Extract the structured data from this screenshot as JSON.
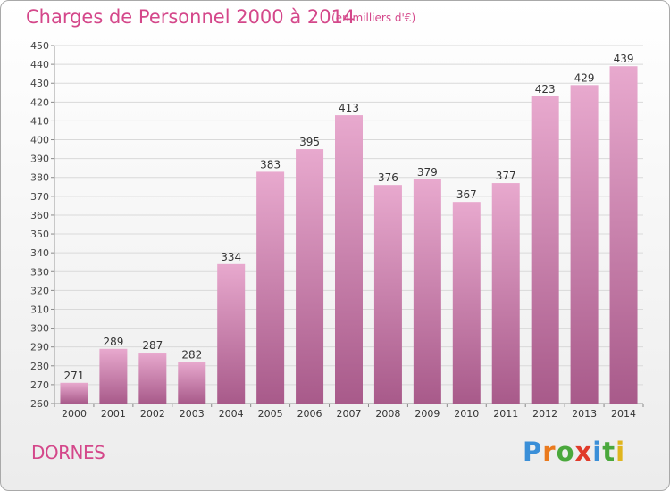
{
  "header": {
    "title": "Charges de Personnel 2000 à 2014",
    "subtitle": "(en milliers d'€)"
  },
  "footer": {
    "place": "DORNES",
    "logo_letters": [
      "P",
      "r",
      "o",
      "x",
      "i",
      "t",
      "i"
    ],
    "logo_colors": [
      "#3a8fd8",
      "#ea7a1e",
      "#4aa83c",
      "#e03a2a",
      "#3a8fd8",
      "#4aa83c",
      "#e0b51e"
    ],
    "logo_icon": "proxiti-logo"
  },
  "colors": {
    "accent": "#d4478a",
    "bar_top": "#e8a9ce",
    "bar_bottom": "#a85a8a",
    "grid": "#d9d9d9"
  },
  "chart_data": {
    "type": "bar",
    "categories": [
      "2000",
      "2001",
      "2002",
      "2003",
      "2004",
      "2005",
      "2006",
      "2007",
      "2008",
      "2009",
      "2010",
      "2011",
      "2012",
      "2013",
      "2014"
    ],
    "values": [
      271,
      289,
      287,
      282,
      334,
      383,
      395,
      413,
      376,
      379,
      367,
      377,
      423,
      429,
      439
    ],
    "ylim": [
      260,
      450
    ],
    "yticks": [
      260,
      270,
      280,
      290,
      300,
      310,
      320,
      330,
      340,
      350,
      360,
      370,
      380,
      390,
      400,
      410,
      420,
      430,
      440,
      450
    ],
    "grid": true,
    "data_labels": true
  }
}
